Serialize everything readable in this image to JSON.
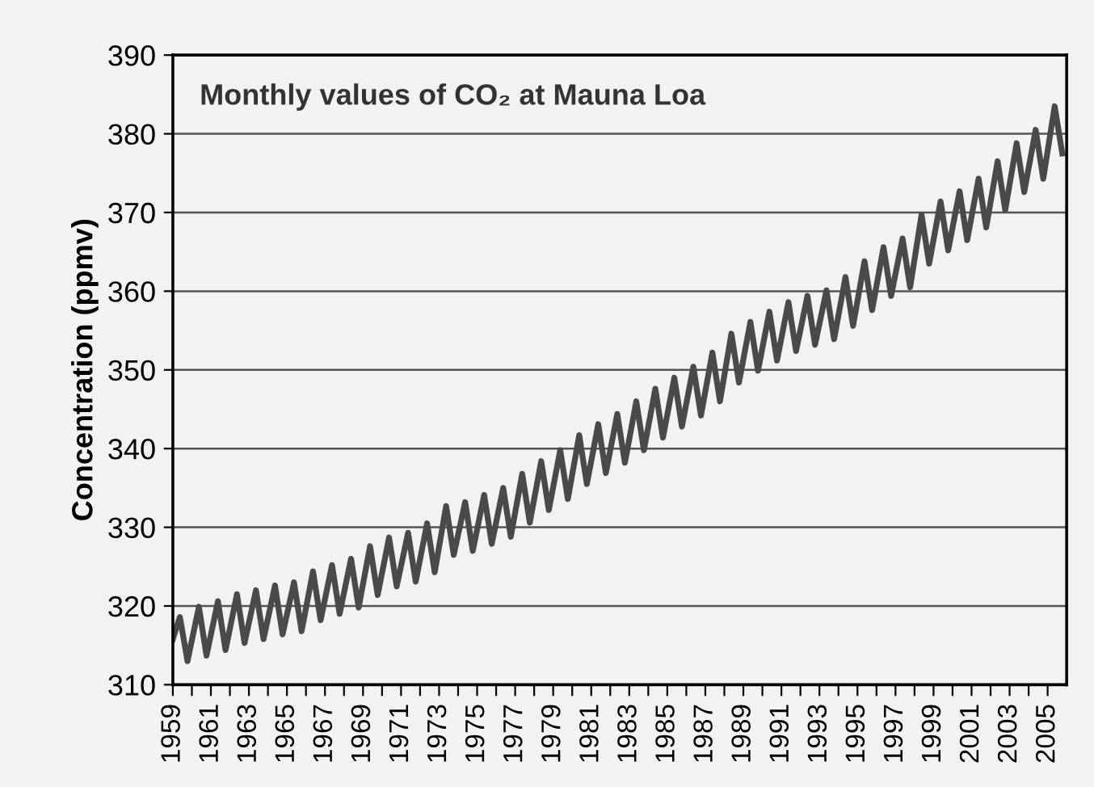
{
  "chart_data": {
    "type": "line",
    "title": "Monthly values of CO₂ at Mauna Loa",
    "ylabel": "Concentration (ppmv)",
    "x": [
      1959.0,
      1959.37,
      1959.77,
      1960.37,
      1960.77,
      1961.37,
      1961.77,
      1962.37,
      1962.77,
      1963.37,
      1963.77,
      1964.37,
      1964.77,
      1965.37,
      1965.77,
      1966.37,
      1966.77,
      1967.37,
      1967.77,
      1968.37,
      1968.77,
      1969.37,
      1969.77,
      1970.37,
      1970.77,
      1971.37,
      1971.77,
      1972.37,
      1972.77,
      1973.37,
      1973.77,
      1974.37,
      1974.77,
      1975.37,
      1975.77,
      1976.37,
      1976.77,
      1977.37,
      1977.77,
      1978.37,
      1978.77,
      1979.37,
      1979.77,
      1980.37,
      1980.77,
      1981.37,
      1981.77,
      1982.37,
      1982.77,
      1983.37,
      1983.77,
      1984.37,
      1984.77,
      1985.37,
      1985.77,
      1986.37,
      1986.77,
      1987.37,
      1987.77,
      1988.37,
      1988.77,
      1989.37,
      1989.77,
      1990.37,
      1990.77,
      1991.37,
      1991.77,
      1992.37,
      1992.77,
      1993.37,
      1993.77,
      1994.37,
      1994.77,
      1995.37,
      1995.77,
      1996.37,
      1996.77,
      1997.37,
      1997.77,
      1998.37,
      1998.77,
      1999.37,
      1999.77,
      2000.37,
      2000.77,
      2001.37,
      2001.77,
      2002.37,
      2002.77,
      2003.37,
      2003.77,
      2004.37,
      2004.77,
      2005.37,
      2005.77
    ],
    "series": [
      {
        "color": "#4a4a4a",
        "values": [
          315.8,
          318.6,
          313.0,
          319.9,
          313.7,
          320.6,
          314.4,
          321.5,
          315.3,
          322.0,
          315.8,
          322.6,
          316.4,
          323.0,
          316.8,
          324.4,
          318.2,
          325.2,
          319.0,
          326.0,
          319.8,
          327.6,
          321.4,
          328.7,
          322.5,
          329.3,
          323.1,
          330.5,
          324.3,
          332.7,
          326.5,
          333.2,
          327.0,
          334.1,
          327.9,
          335.0,
          328.8,
          336.8,
          330.6,
          338.4,
          332.2,
          339.8,
          333.6,
          341.7,
          335.5,
          343.1,
          336.9,
          344.4,
          338.2,
          346.0,
          339.8,
          347.6,
          341.4,
          349.0,
          342.8,
          350.4,
          344.2,
          352.2,
          346.0,
          354.6,
          348.4,
          356.1,
          349.9,
          357.4,
          351.2,
          358.6,
          352.4,
          359.4,
          353.2,
          360.1,
          353.9,
          361.8,
          355.6,
          363.8,
          357.6,
          365.6,
          359.4,
          366.7,
          360.5,
          369.7,
          363.5,
          371.4,
          365.2,
          372.7,
          366.5,
          374.3,
          368.1,
          376.5,
          370.3,
          378.8,
          372.6,
          380.5,
          374.3,
          383.5,
          377.5
        ]
      }
    ],
    "xlim": [
      1959,
      2006
    ],
    "ylim": [
      310,
      390
    ],
    "yticks": [
      310,
      320,
      330,
      340,
      350,
      360,
      370,
      380,
      390
    ],
    "xticks": [
      1959,
      {
        "value": 1960,
        "label": null
      },
      1961,
      {
        "value": 1962,
        "label": null
      },
      1963,
      {
        "value": 1964,
        "label": null
      },
      1965,
      {
        "value": 1966,
        "label": null
      },
      1967,
      {
        "value": 1968,
        "label": null
      },
      1969,
      {
        "value": 1970,
        "label": null
      },
      1971,
      {
        "value": 1972,
        "label": null
      },
      1973,
      {
        "value": 1974,
        "label": null
      },
      1975,
      {
        "value": 1976,
        "label": null
      },
      1977,
      {
        "value": 1978,
        "label": null
      },
      1979,
      {
        "value": 1980,
        "label": null
      },
      1981,
      {
        "value": 1982,
        "label": null
      },
      1983,
      {
        "value": 1984,
        "label": null
      },
      1985,
      {
        "value": 1986,
        "label": null
      },
      1987,
      {
        "value": 1988,
        "label": null
      },
      1989,
      {
        "value": 1990,
        "label": null
      },
      1991,
      {
        "value": 1992,
        "label": null
      },
      1993,
      {
        "value": 1994,
        "label": null
      },
      1995,
      {
        "value": 1996,
        "label": null
      },
      1997,
      {
        "value": 1998,
        "label": null
      },
      1999,
      {
        "value": 2000,
        "label": null
      },
      2001,
      {
        "value": 2002,
        "label": null
      },
      2003,
      {
        "value": 2004,
        "label": null
      },
      2005
    ],
    "grid": "y",
    "legend": false,
    "marker": "none",
    "line_style": "solid"
  }
}
